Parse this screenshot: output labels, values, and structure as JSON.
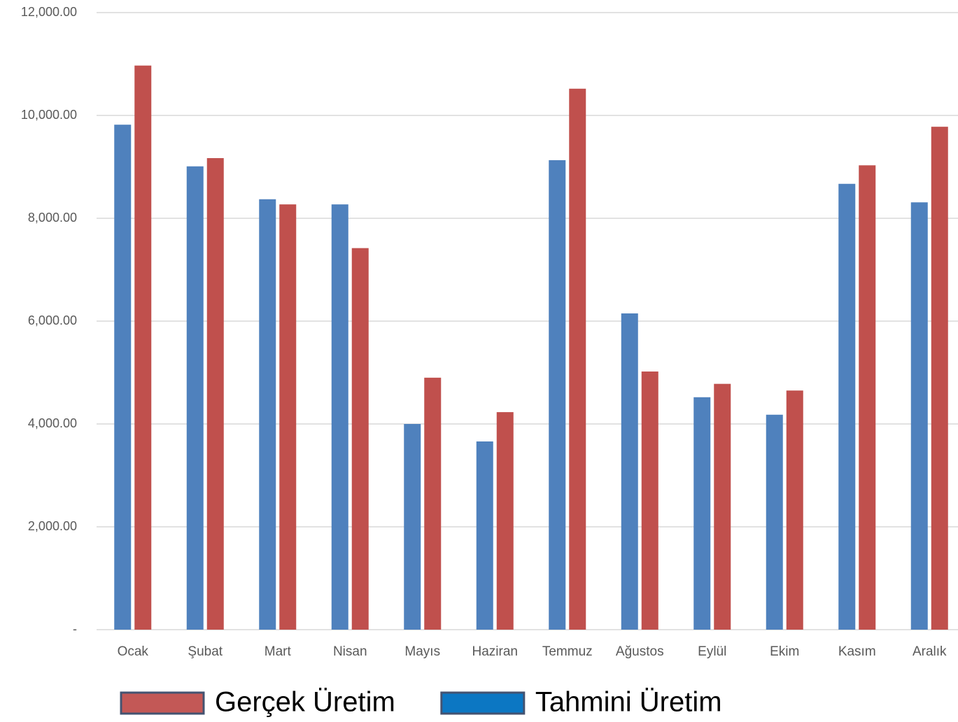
{
  "chart_data": {
    "type": "bar",
    "categories": [
      "Ocak",
      "Şubat",
      "Mart",
      "Nisan",
      "Mayıs",
      "Haziran",
      "Temmuz",
      "Ağustos",
      "Eylül",
      "Ekim",
      "Kasım",
      "Aralık"
    ],
    "series": [
      {
        "name": "Tahmini Üretim",
        "color": "#4f81bd",
        "legend_color": "#0070c0",
        "values": [
          9820,
          9010,
          8370,
          8270,
          4000,
          3660,
          9130,
          6150,
          4520,
          4180,
          8670,
          8310
        ]
      },
      {
        "name": "Gerçek Üretim",
        "color": "#c0504d",
        "legend_color": "#c0504d",
        "values": [
          10970,
          9170,
          8270,
          7420,
          4900,
          4230,
          10520,
          5020,
          4780,
          4650,
          9030,
          9780
        ]
      }
    ],
    "ylim": [
      0,
      12000
    ],
    "yticks": [
      {
        "value": 0,
        "label": "-"
      },
      {
        "value": 2000,
        "label": "2,000.00"
      },
      {
        "value": 4000,
        "label": "4,000.00"
      },
      {
        "value": 6000,
        "label": "6,000.00"
      },
      {
        "value": 8000,
        "label": "8,000.00"
      },
      {
        "value": 10000,
        "label": "10,000.00"
      },
      {
        "value": 12000,
        "label": "12,000.00"
      }
    ],
    "grid": true
  }
}
